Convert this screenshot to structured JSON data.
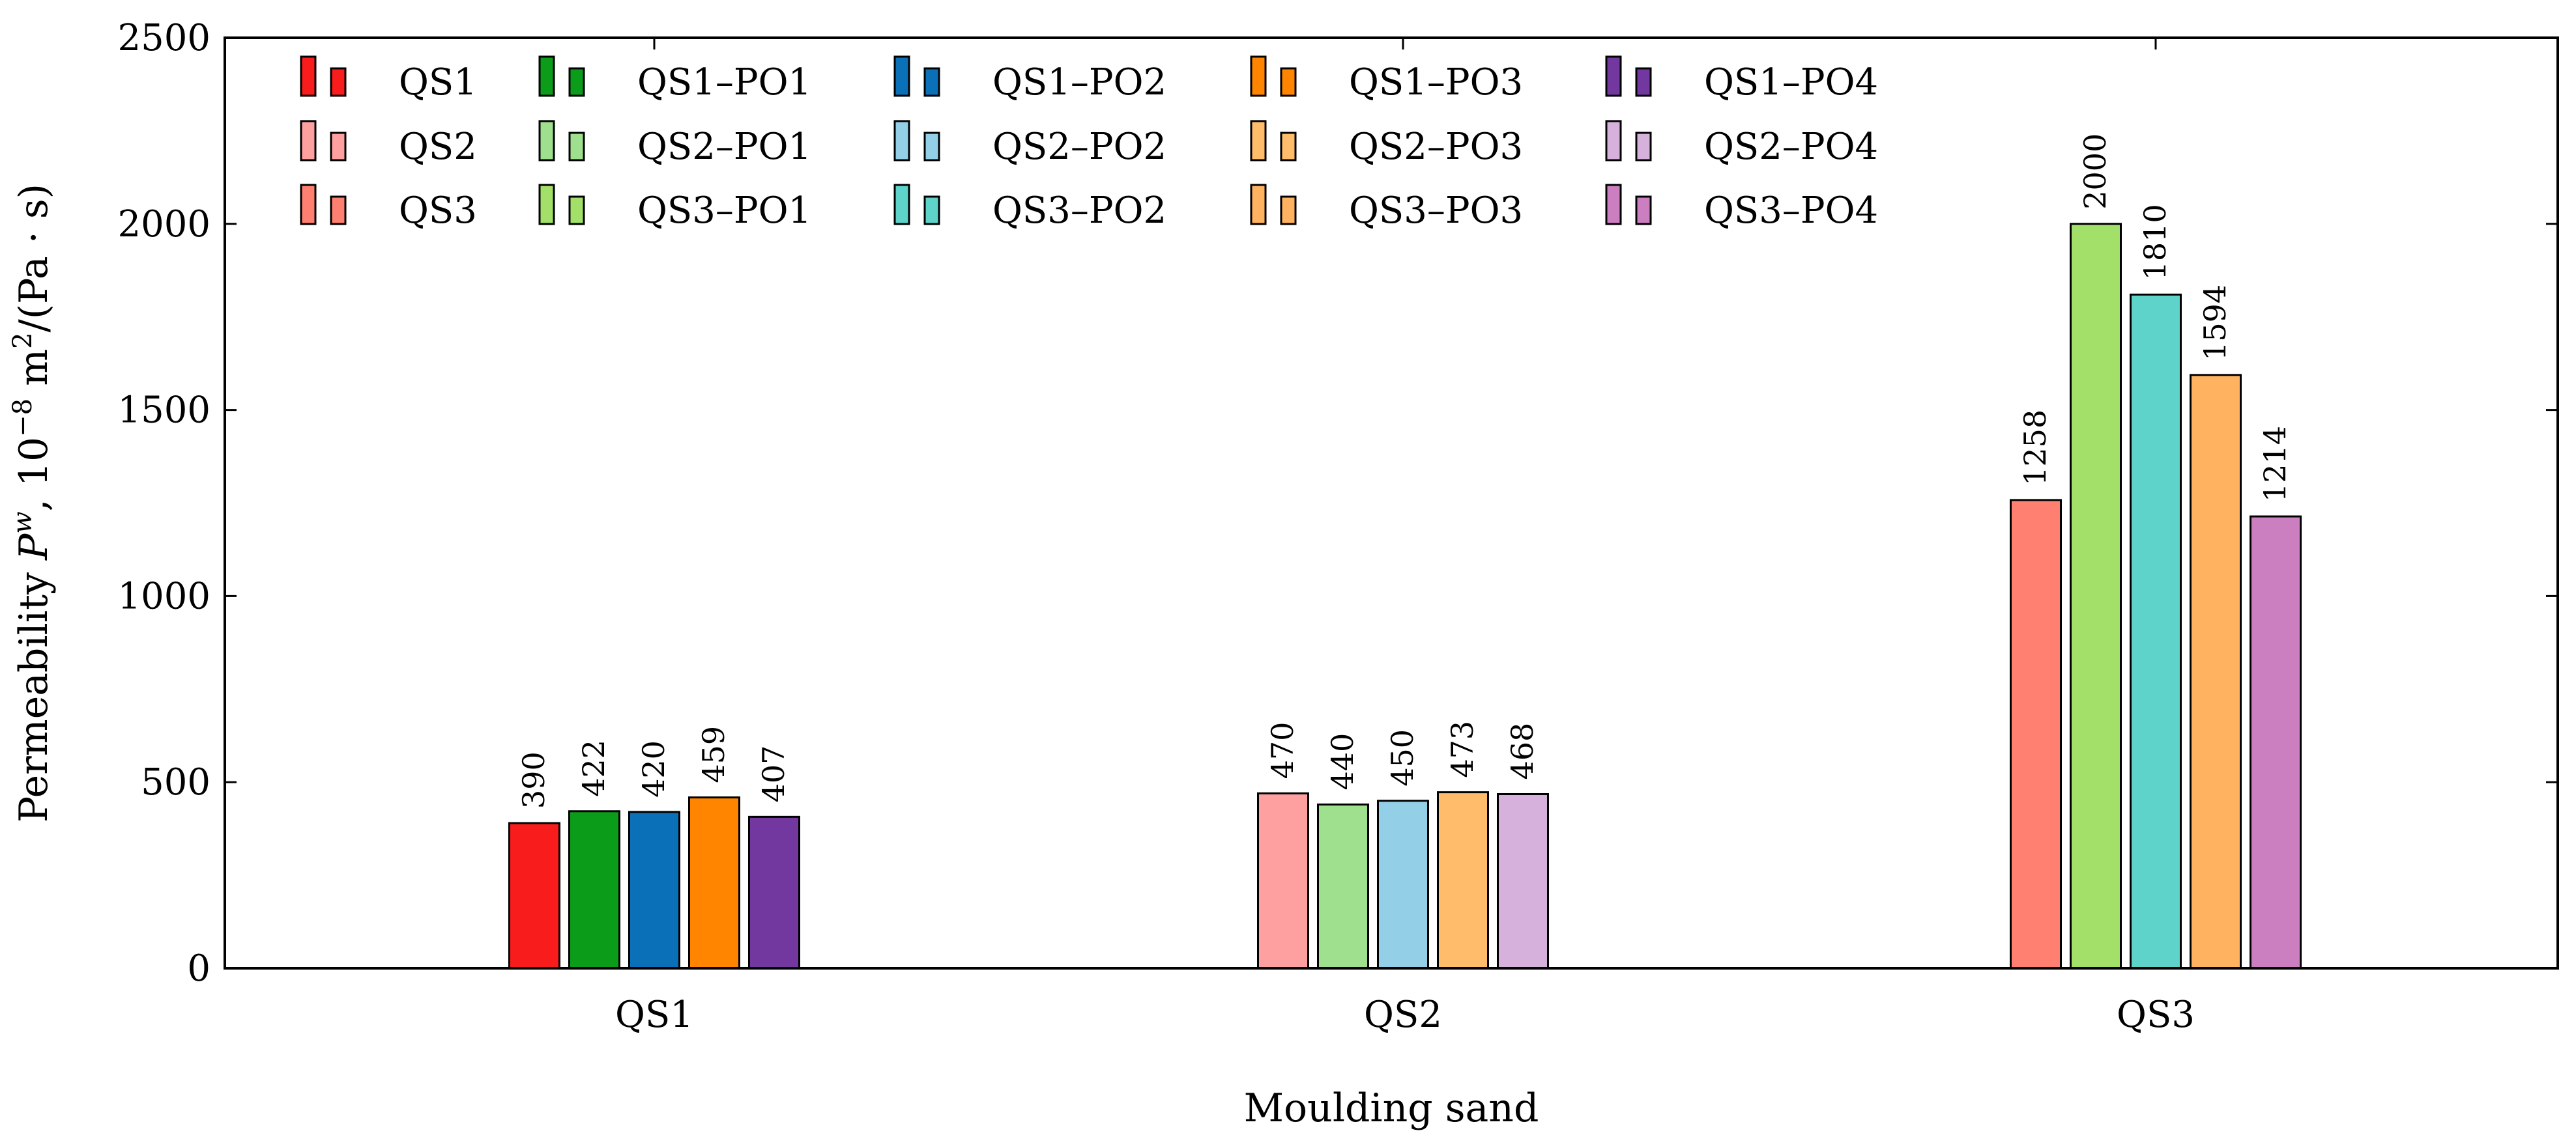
{
  "chart_data": {
    "type": "bar",
    "title": "",
    "xlabel": "Moulding sand",
    "ylabel": "Permeability P^w, 10^-8 m^2/(Pa·s)",
    "ylabel_parts": {
      "prefix": "Permeability ",
      "symbol": "P",
      "symbol_sup": "w",
      "sep": ", ",
      "unit_base": "10",
      "unit_exp": "−8",
      "unit_m": " m",
      "unit_m_exp": "2",
      "unit_tail": "/(Pa · s)"
    },
    "ylim": [
      0,
      2500
    ],
    "yticks": [
      "0",
      "500",
      "1000",
      "1500",
      "2000",
      "2500"
    ],
    "categories": [
      "QS1",
      "QS2",
      "QS3"
    ],
    "legend_position": "top-left",
    "legend_columns": [
      [
        "QS1",
        "QS2",
        "QS3"
      ],
      [
        "QS1–PO1",
        "QS2–PO1",
        "QS3–PO1"
      ],
      [
        "QS1–PO2",
        "QS2–PO2",
        "QS3–PO2"
      ],
      [
        "QS1–PO3",
        "QS2–PO3",
        "QS3–PO3"
      ],
      [
        "QS1–PO4",
        "QS2–PO4",
        "QS3–PO4"
      ]
    ],
    "groups": [
      {
        "category": "QS1",
        "bars": [
          {
            "series": "QS1",
            "value": 390,
            "label": "390",
            "color": "#f91c1c"
          },
          {
            "series": "QS1–PO1",
            "value": 422,
            "label": "422",
            "color": "#0b9c1a"
          },
          {
            "series": "QS1–PO2",
            "value": 420,
            "label": "420",
            "color": "#0a70b7"
          },
          {
            "series": "QS1–PO3",
            "value": 459,
            "label": "459",
            "color": "#ff8500"
          },
          {
            "series": "QS1–PO4",
            "value": 407,
            "label": "407",
            "color": "#7238a0"
          }
        ]
      },
      {
        "category": "QS2",
        "bars": [
          {
            "series": "QS2",
            "value": 470,
            "label": "470",
            "color": "#ffa0a0"
          },
          {
            "series": "QS2–PO1",
            "value": 440,
            "label": "440",
            "color": "#9fe08f"
          },
          {
            "series": "QS2–PO2",
            "value": 450,
            "label": "450",
            "color": "#93cfe6"
          },
          {
            "series": "QS2–PO3",
            "value": 473,
            "label": "473",
            "color": "#ffbd6b"
          },
          {
            "series": "QS2–PO4",
            "value": 468,
            "label": "468",
            "color": "#d5b1db"
          }
        ]
      },
      {
        "category": "QS3",
        "bars": [
          {
            "series": "QS3",
            "value": 1258,
            "label": "1258",
            "color": "#ff8070"
          },
          {
            "series": "QS3–PO1",
            "value": 2000,
            "label": "2000",
            "color": "#a3e069"
          },
          {
            "series": "QS3–PO2",
            "value": 1810,
            "label": "1810",
            "color": "#5dd3c9"
          },
          {
            "series": "QS3–PO3",
            "value": 1594,
            "label": "1594",
            "color": "#ffb361"
          },
          {
            "series": "QS3–PO4",
            "value": 1214,
            "label": "1214",
            "color": "#cc7fc0"
          }
        ]
      }
    ],
    "legend_colors": [
      [
        "#f91c1c",
        "#ffa0a0",
        "#ff8070"
      ],
      [
        "#0b9c1a",
        "#9fe08f",
        "#a3e069"
      ],
      [
        "#0a70b7",
        "#93cfe6",
        "#5dd3c9"
      ],
      [
        "#ff8500",
        "#ffbd6b",
        "#ffb361"
      ],
      [
        "#7238a0",
        "#d5b1db",
        "#cc7fc0"
      ]
    ]
  }
}
